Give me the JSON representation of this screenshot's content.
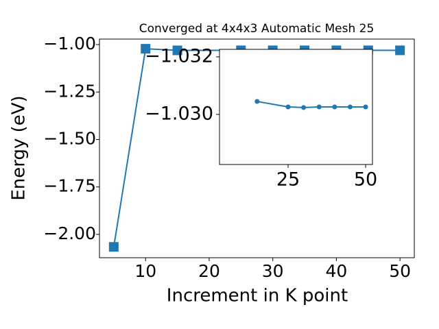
{
  "chart_data": [
    {
      "type": "line",
      "title": "Converged at 4x4x3 Automatic Mesh 25",
      "xlabel": "Increment in K point",
      "ylabel": "Energy (eV)",
      "x": [
        5,
        10,
        15,
        25,
        30,
        35,
        40,
        45,
        50
      ],
      "series": [
        {
          "color": "#1f77b4",
          "marker": "square",
          "values": [
            -2.066,
            -1.022,
            -1.0305,
            -1.0303,
            -1.0303,
            -1.0303,
            -1.0303,
            -1.0303,
            -1.0303
          ]
        }
      ],
      "xlim": [
        2.75,
        52.25
      ],
      "ylim": [
        -2.123,
        -0.971
      ],
      "xticks": [
        10,
        20,
        30,
        40,
        50
      ],
      "yticks": [
        {
          "value": -2.0,
          "label": "−2.00"
        },
        {
          "value": -1.75,
          "label": "−1.75"
        },
        {
          "value": -1.5,
          "label": "−1.50"
        },
        {
          "value": -1.25,
          "label": "−1.25"
        },
        {
          "value": -1.0,
          "label": "−1.00"
        }
      ]
    },
    {
      "type": "line",
      "x": [
        15,
        25,
        30,
        35,
        40,
        45,
        50
      ],
      "series": [
        {
          "color": "#1f77b4",
          "marker": "circle",
          "values": [
            -1.03045,
            -1.03026,
            -1.03024,
            -1.03026,
            -1.03026,
            -1.03026,
            -1.03026
          ]
        }
      ],
      "xlim": [
        2.88,
        52.2
      ],
      "ylim": [
        -1.02826,
        -1.03226
      ],
      "xticks": [
        25,
        50
      ],
      "yticks": [
        {
          "value": -1.032,
          "label": "−1.032"
        },
        {
          "value": -1.03,
          "label": "−1.030"
        }
      ]
    }
  ]
}
